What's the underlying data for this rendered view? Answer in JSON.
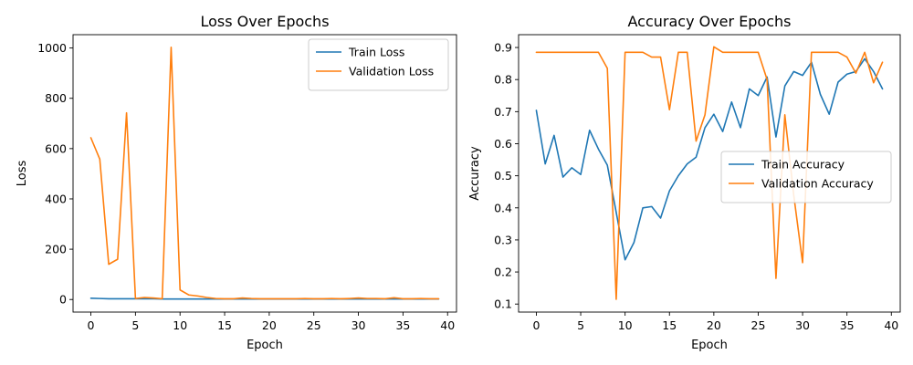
{
  "colors": {
    "train": "#1f77b4",
    "validation": "#ff7f0e"
  },
  "chart_data": [
    {
      "type": "line",
      "title": "Loss Over Epochs",
      "xlabel": "Epoch",
      "ylabel": "Loss",
      "xlim": [
        -2,
        41
      ],
      "ylim": [
        -50,
        1053
      ],
      "xticks": [
        0,
        5,
        10,
        15,
        20,
        25,
        30,
        35,
        40
      ],
      "yticks": [
        0,
        200,
        400,
        600,
        800,
        1000
      ],
      "grid": false,
      "legend": "top-right",
      "x": [
        0,
        1,
        2,
        3,
        4,
        5,
        6,
        7,
        8,
        9,
        10,
        11,
        12,
        13,
        14,
        15,
        16,
        17,
        18,
        19,
        20,
        21,
        22,
        23,
        24,
        25,
        26,
        27,
        28,
        29,
        30,
        31,
        32,
        33,
        34,
        35,
        36,
        37,
        38,
        39
      ],
      "series": [
        {
          "name": "Train Loss",
          "color_key": "train",
          "values": [
            5,
            4,
            3,
            3,
            3,
            3,
            3,
            3,
            2,
            2,
            2,
            2,
            2,
            2,
            2,
            2,
            2,
            2,
            2,
            2,
            2,
            2,
            2,
            2,
            2,
            2,
            2,
            2,
            2,
            2,
            2,
            2,
            2,
            2,
            2,
            2,
            2,
            2,
            2,
            2
          ]
        },
        {
          "name": "Validation Loss",
          "color_key": "validation",
          "values": [
            643,
            558,
            140,
            160,
            742,
            4,
            8,
            6,
            3,
            1003,
            38,
            18,
            14,
            8,
            4,
            3,
            3,
            6,
            4,
            3,
            3,
            3,
            3,
            3,
            4,
            3,
            3,
            4,
            3,
            4,
            6,
            4,
            4,
            3,
            7,
            3,
            3,
            4,
            3,
            3
          ]
        }
      ]
    },
    {
      "type": "line",
      "title": "Accuracy Over Epochs",
      "xlabel": "Epoch",
      "ylabel": "Accuracy",
      "xlim": [
        -2,
        41
      ],
      "ylim": [
        0.075,
        0.94
      ],
      "xticks": [
        0,
        5,
        10,
        15,
        20,
        25,
        30,
        35,
        40
      ],
      "yticks": [
        0.1,
        0.2,
        0.3,
        0.4,
        0.5,
        0.6,
        0.7,
        0.8,
        0.9
      ],
      "grid": false,
      "legend": "center-right",
      "x": [
        0,
        1,
        2,
        3,
        4,
        5,
        6,
        7,
        8,
        9,
        10,
        11,
        12,
        13,
        14,
        15,
        16,
        17,
        18,
        19,
        20,
        21,
        22,
        23,
        24,
        25,
        26,
        27,
        28,
        29,
        30,
        31,
        32,
        33,
        34,
        35,
        36,
        37,
        38,
        39
      ],
      "series": [
        {
          "name": "Train Accuracy",
          "color_key": "train",
          "values": [
            0.704,
            0.537,
            0.626,
            0.496,
            0.525,
            0.504,
            0.642,
            0.583,
            0.533,
            0.386,
            0.238,
            0.292,
            0.4,
            0.404,
            0.368,
            0.453,
            0.5,
            0.537,
            0.558,
            0.65,
            0.692,
            0.638,
            0.73,
            0.65,
            0.771,
            0.75,
            0.808,
            0.621,
            0.78,
            0.825,
            0.813,
            0.854,
            0.754,
            0.692,
            0.792,
            0.817,
            0.825,
            0.865,
            0.825,
            0.771
          ]
        },
        {
          "name": "Validation Accuracy",
          "color_key": "validation",
          "values": [
            0.885,
            0.885,
            0.885,
            0.885,
            0.885,
            0.885,
            0.885,
            0.885,
            0.835,
            0.115,
            0.885,
            0.885,
            0.885,
            0.87,
            0.87,
            0.706,
            0.885,
            0.885,
            0.608,
            0.69,
            0.902,
            0.885,
            0.885,
            0.885,
            0.885,
            0.885,
            0.8,
            0.18,
            0.69,
            0.44,
            0.229,
            0.885,
            0.885,
            0.885,
            0.885,
            0.87,
            0.82,
            0.885,
            0.79,
            0.854
          ]
        }
      ]
    }
  ]
}
